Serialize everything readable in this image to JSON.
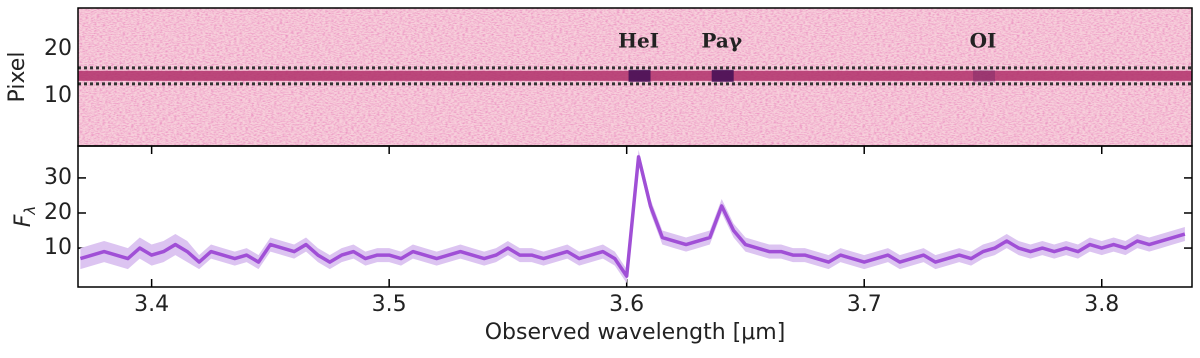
{
  "chart_data": [
    {
      "type": "image",
      "y_label": "Pixel",
      "xlim": [
        3.369,
        3.838
      ],
      "xticks": [
        3.4,
        3.5,
        3.6,
        3.7,
        3.8
      ],
      "ylim": [
        -0.6,
        28.7
      ],
      "yticks": [
        10,
        20
      ],
      "aperture": [
        12.6,
        16
      ],
      "trace_color": "#b0306a",
      "background_color": "#f7cfdb",
      "annotations": [
        {
          "text": "HeI",
          "x": 3.605
        },
        {
          "text": "Paγ",
          "x": 3.64
        },
        {
          "text": "OI",
          "x": 3.75
        }
      ]
    },
    {
      "type": "line",
      "x_label": "Observed wavelength [μm]",
      "y_label": "F",
      "y_label_sub": "λ",
      "xlim": [
        3.369,
        3.838
      ],
      "xticks": [
        3.4,
        3.5,
        3.6,
        3.7,
        3.8
      ],
      "ylim": [
        -1.1,
        39.1
      ],
      "yticks": [
        10,
        20,
        30
      ],
      "x": [
        3.37,
        3.375,
        3.38,
        3.385,
        3.39,
        3.395,
        3.4,
        3.405,
        3.41,
        3.415,
        3.42,
        3.425,
        3.43,
        3.435,
        3.44,
        3.445,
        3.45,
        3.455,
        3.46,
        3.465,
        3.47,
        3.475,
        3.48,
        3.485,
        3.49,
        3.495,
        3.5,
        3.505,
        3.51,
        3.515,
        3.52,
        3.525,
        3.53,
        3.535,
        3.54,
        3.545,
        3.55,
        3.555,
        3.56,
        3.565,
        3.57,
        3.575,
        3.58,
        3.585,
        3.59,
        3.595,
        3.6,
        3.605,
        3.61,
        3.615,
        3.62,
        3.625,
        3.63,
        3.635,
        3.64,
        3.645,
        3.65,
        3.655,
        3.66,
        3.665,
        3.67,
        3.675,
        3.68,
        3.685,
        3.69,
        3.695,
        3.7,
        3.705,
        3.71,
        3.715,
        3.72,
        3.725,
        3.73,
        3.735,
        3.74,
        3.745,
        3.75,
        3.755,
        3.76,
        3.765,
        3.77,
        3.775,
        3.78,
        3.785,
        3.79,
        3.795,
        3.8,
        3.805,
        3.81,
        3.815,
        3.82,
        3.825,
        3.83,
        3.835
      ],
      "series": [
        {
          "color": "#a04fd6",
          "error_color": "#dcc4f1",
          "values": [
            7,
            8,
            9,
            8,
            7,
            10,
            8,
            9,
            11,
            9,
            6,
            9,
            8,
            7,
            8,
            6,
            11,
            10,
            9,
            11,
            8,
            6,
            8,
            9,
            7,
            8,
            8,
            7,
            9,
            8,
            7,
            8,
            9,
            8,
            7,
            8,
            10,
            8,
            8,
            7,
            8,
            9,
            7,
            8,
            9,
            7,
            2,
            36,
            22,
            13,
            12,
            11,
            12,
            13,
            22,
            15,
            11,
            10,
            9,
            9,
            8,
            8,
            7,
            6,
            8,
            7,
            6,
            7,
            8,
            6,
            7,
            8,
            6,
            7,
            8,
            7,
            9,
            10,
            12,
            10,
            9,
            10,
            9,
            10,
            9,
            11,
            10,
            11,
            10,
            12,
            11,
            12,
            13,
            14
          ],
          "errors": [
            3,
            3,
            3,
            3,
            3,
            3,
            3,
            3,
            3,
            3,
            2,
            2,
            2,
            2,
            2,
            2,
            2,
            2,
            2,
            2,
            2,
            2,
            2,
            2,
            2,
            2,
            2,
            2,
            2,
            2,
            2,
            2,
            2,
            2,
            2,
            2,
            2,
            2,
            2,
            2,
            2,
            2,
            2,
            2,
            2,
            2,
            2,
            2,
            2,
            2,
            2,
            2,
            2,
            2,
            2,
            2,
            2,
            2,
            2,
            2,
            2,
            2,
            2,
            2,
            2,
            2,
            2,
            2,
            2,
            2,
            2,
            2,
            2,
            2,
            2,
            2,
            2,
            2,
            2,
            2,
            2,
            2,
            2,
            2,
            2,
            2,
            2,
            2,
            2,
            2,
            2,
            2,
            2,
            2
          ]
        }
      ]
    }
  ]
}
